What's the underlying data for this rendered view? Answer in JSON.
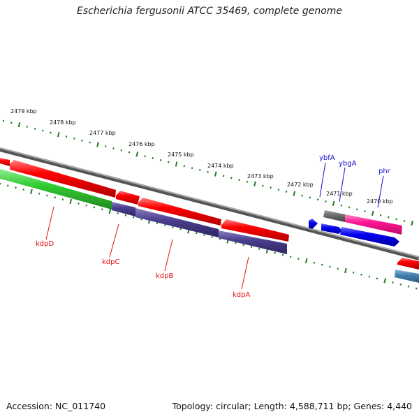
{
  "title": "Escherichia fergusonii ATCC 35469, complete genome",
  "footer": {
    "accession": "Accession: NC_011740",
    "topology": "Topology: circular; Length: 4,588,711 bp; Genes: 4,440"
  },
  "scale_labels": [
    "2479 kbp",
    "2478 kbp",
    "2477 kbp",
    "2476 kbp",
    "2475 kbp",
    "2474 kbp",
    "2473 kbp",
    "2472 kbp",
    "2471 kbp",
    "2470 kbp"
  ],
  "gene_labels": {
    "kdpD": "kdpD",
    "kdpC": "kdpC",
    "kdpB": "kdpB",
    "kdpA": "kdpA",
    "ybfA": "ybfA",
    "ybgA": "ybgA",
    "phr": "phr"
  },
  "colors": {
    "red": "#ff0000",
    "green": "#33cc33",
    "purple": "#4b3f8f",
    "blue": "#0000ee",
    "pink": "#ff1493",
    "gray": "#707070",
    "steel": "#4682b4",
    "tick": "#1e7a1e",
    "label_red": "#e01010",
    "label_blue": "#1010cc"
  }
}
